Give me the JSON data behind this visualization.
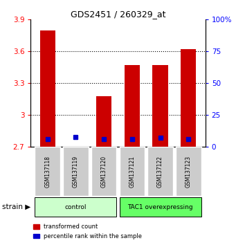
{
  "title": "GDS2451 / 260329_at",
  "samples": [
    "GSM137118",
    "GSM137119",
    "GSM137120",
    "GSM137121",
    "GSM137122",
    "GSM137123"
  ],
  "red_values": [
    3.8,
    2.705,
    3.18,
    3.47,
    3.47,
    3.62
  ],
  "blue_values": [
    2.775,
    2.795,
    2.775,
    2.775,
    2.785,
    2.775
  ],
  "red_base": 2.7,
  "ylim_left": [
    2.7,
    3.9
  ],
  "ylim_right": [
    0,
    100
  ],
  "yticks_left": [
    2.7,
    3.0,
    3.3,
    3.6,
    3.9
  ],
  "yticks_right": [
    0,
    25,
    50,
    75,
    100
  ],
  "ytick_labels_left": [
    "2.7",
    "3",
    "3.3",
    "3.6",
    "3.9"
  ],
  "ytick_labels_right": [
    "0",
    "25",
    "50",
    "75",
    "100%"
  ],
  "groups": [
    {
      "label": "control",
      "indices": [
        0,
        1,
        2
      ],
      "color": "#ccffcc"
    },
    {
      "label": "TAC1 overexpressing",
      "indices": [
        3,
        4,
        5
      ],
      "color": "#66ff66"
    }
  ],
  "bar_width": 0.55,
  "red_color": "#cc0000",
  "blue_color": "#0000cc",
  "xticklabels_bg": "#cccccc",
  "legend_red": "transformed count",
  "legend_blue": "percentile rank within the sample",
  "strain_label": "strain",
  "dotted_gridlines": [
    3.0,
    3.3,
    3.6
  ],
  "blue_sq_size": 4.5
}
